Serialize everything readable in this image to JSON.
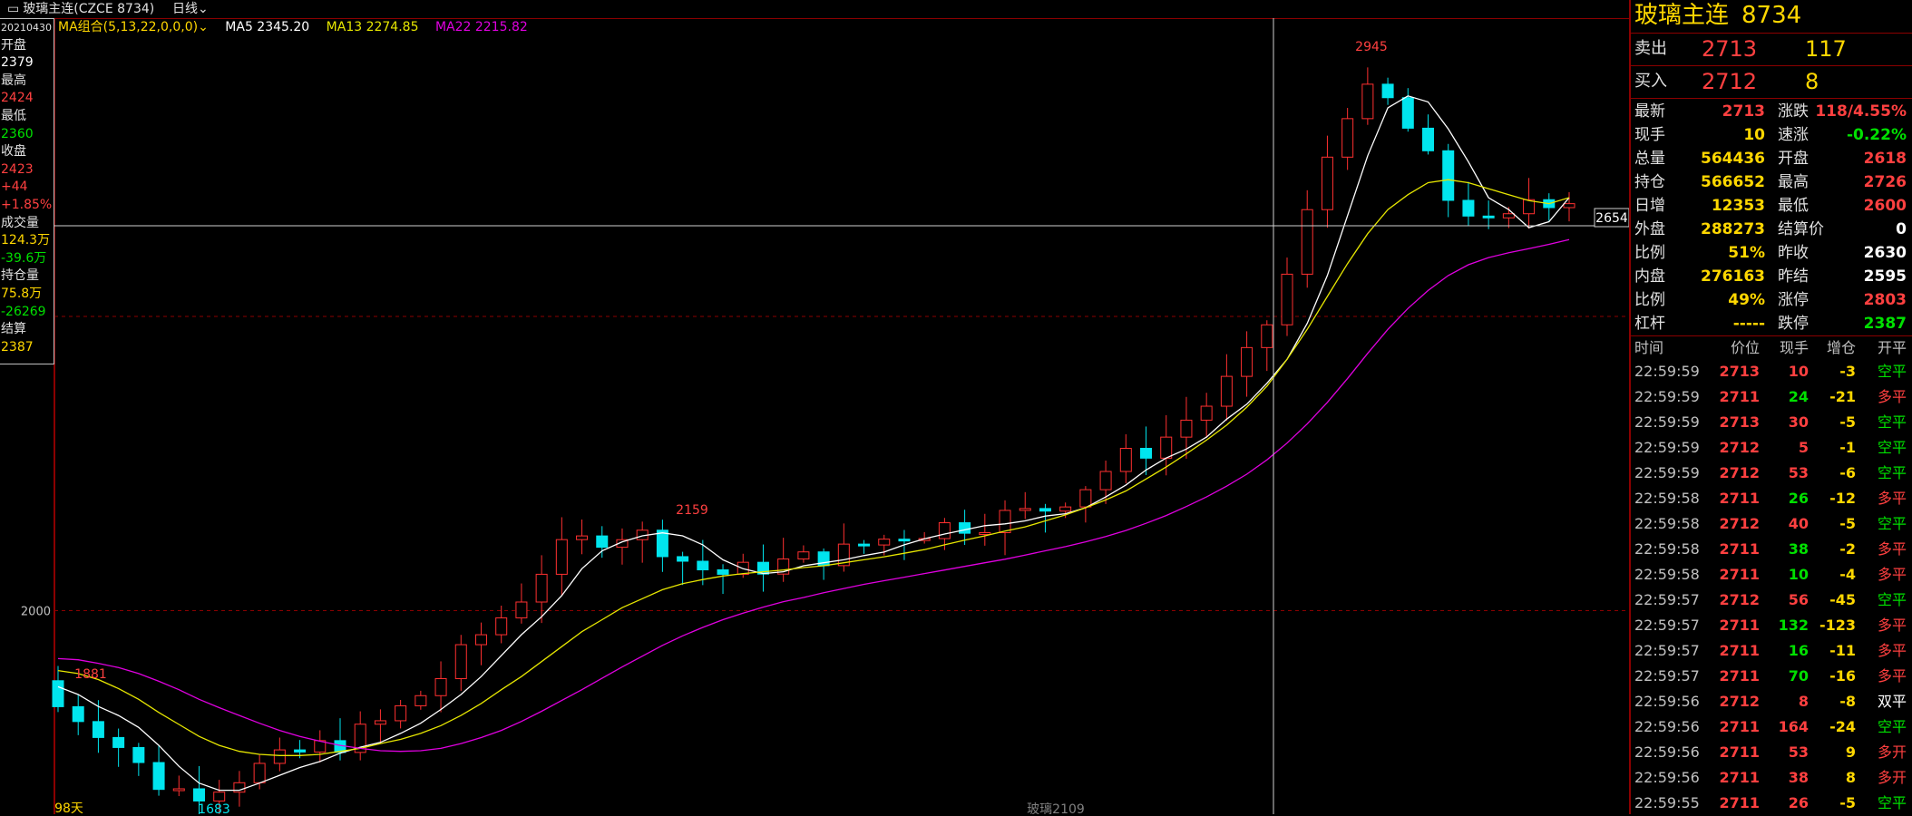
{
  "topbar": {
    "title": "玻璃主连(CZCE 8734)",
    "period": "日线",
    "period_icon": "chevron-down-icon"
  },
  "info": {
    "date": "20210430",
    "open_label": "开盘",
    "open": "2379",
    "high_label": "最高",
    "high": "2424",
    "low_label": "最低",
    "low": "2360",
    "close_label": "收盘",
    "close": "2423",
    "chg": "+44",
    "chg_pct": "+1.85%",
    "vol_label": "成交量",
    "vol": "124.3万",
    "vol_chg": "-39.6万",
    "oi_label": "持仓量",
    "oi": "75.8万",
    "oi_chg": "-26269",
    "settle_label": "结算",
    "settle": "2387"
  },
  "ma": {
    "group": "MA组合(5,13,22,0,0,0)",
    "ma5": "MA5 2345.20",
    "ma13": "MA13 2274.85",
    "ma22": "MA22 2215.82",
    "colors": {
      "ma5": "#ffffff",
      "ma13": "#e6e600",
      "ma22": "#e000e0"
    }
  },
  "chart_labels": {
    "price_2000": "2000",
    "crosshair_price": "2654",
    "peak": "2945",
    "peak2": "2159",
    "low1": "1881",
    "low2": "1683",
    "days": "98天",
    "contract": "玻璃2109"
  },
  "chart_data": {
    "type": "candlestick",
    "ylim": [
      1660,
      2990
    ],
    "series": [
      {
        "name": "MA5",
        "values": [
          1873,
          1860,
          1840,
          1825,
          1805,
          1775,
          1740,
          1712,
          1700,
          1700,
          1712,
          1725,
          1738,
          1748,
          1762,
          1772,
          1780,
          1795,
          1812,
          1835,
          1860,
          1890,
          1925,
          1960,
          1990,
          2025,
          2070,
          2100,
          2115,
          2125,
          2130,
          2125,
          2110,
          2085,
          2070,
          2062,
          2065,
          2075,
          2080,
          2085,
          2092,
          2098,
          2110,
          2120,
          2128,
          2135,
          2142,
          2145,
          2150,
          2158,
          2162,
          2172,
          2190,
          2210,
          2235,
          2255,
          2270,
          2290,
          2320,
          2345,
          2380,
          2420,
          2480,
          2560,
          2660,
          2760,
          2840,
          2860,
          2850,
          2805,
          2750,
          2690,
          2670,
          2640,
          2650,
          2690
        ]
      },
      {
        "name": "MA13",
        "values": [
          1900,
          1895,
          1885,
          1870,
          1852,
          1830,
          1810,
          1790,
          1775,
          1765,
          1760,
          1758,
          1758,
          1760,
          1765,
          1770,
          1778,
          1785,
          1795,
          1808,
          1825,
          1845,
          1868,
          1890,
          1915,
          1940,
          1965,
          1985,
          2005,
          2020,
          2035,
          2045,
          2052,
          2058,
          2062,
          2065,
          2068,
          2072,
          2075,
          2080,
          2085,
          2090,
          2096,
          2102,
          2110,
          2118,
          2125,
          2133,
          2140,
          2150,
          2160,
          2172,
          2185,
          2200,
          2220,
          2240,
          2262,
          2285,
          2310,
          2340,
          2375,
          2420,
          2470,
          2525,
          2580,
          2630,
          2670,
          2695,
          2715,
          2720,
          2715,
          2705,
          2695,
          2685,
          2680,
          2690
        ]
      },
      {
        "name": "MA22",
        "values": [
          1920,
          1918,
          1912,
          1905,
          1895,
          1882,
          1868,
          1852,
          1838,
          1825,
          1812,
          1800,
          1790,
          1782,
          1775,
          1770,
          1766,
          1765,
          1766,
          1770,
          1778,
          1788,
          1800,
          1815,
          1832,
          1850,
          1868,
          1887,
          1906,
          1924,
          1942,
          1958,
          1972,
          1985,
          1996,
          2006,
          2015,
          2022,
          2030,
          2037,
          2044,
          2050,
          2056,
          2062,
          2068,
          2074,
          2080,
          2086,
          2093,
          2100,
          2107,
          2115,
          2124,
          2134,
          2146,
          2159,
          2174,
          2190,
          2208,
          2228,
          2252,
          2280,
          2312,
          2348,
          2388,
          2430,
          2470,
          2505,
          2535,
          2560,
          2578,
          2590,
          2598,
          2605,
          2612,
          2620
        ]
      }
    ]
  },
  "panel": {
    "name": "玻璃主连",
    "code": "8734",
    "sell_label": "卖出",
    "sell_price": "2713",
    "sell_vol": "117",
    "buy_label": "买入",
    "buy_price": "2712",
    "buy_vol": "8",
    "quotes": [
      {
        "k1": "最新",
        "v1": "2713",
        "c1": "red",
        "k2": "涨跌",
        "v2": "118/4.55%",
        "c2": "red"
      },
      {
        "k1": "现手",
        "v1": "10",
        "c1": "yellow",
        "k2": "速涨",
        "v2": "-0.22%",
        "c2": "green"
      },
      {
        "k1": "总量",
        "v1": "564436",
        "c1": "yellow",
        "k2": "开盘",
        "v2": "2618",
        "c2": "red"
      },
      {
        "k1": "持仓",
        "v1": "566652",
        "c1": "yellow",
        "k2": "最高",
        "v2": "2726",
        "c2": "red"
      },
      {
        "k1": "日增",
        "v1": "12353",
        "c1": "yellow",
        "k2": "最低",
        "v2": "2600",
        "c2": "red"
      },
      {
        "k1": "外盘",
        "v1": "288273",
        "c1": "yellow",
        "k2": "结算价",
        "v2": "0",
        "c2": "white"
      },
      {
        "k1": "比例",
        "v1": "51%",
        "c1": "yellow",
        "k2": "昨收",
        "v2": "2630",
        "c2": "white"
      },
      {
        "k1": "内盘",
        "v1": "276163",
        "c1": "yellow",
        "k2": "昨结",
        "v2": "2595",
        "c2": "white"
      },
      {
        "k1": "比例",
        "v1": "49%",
        "c1": "yellow",
        "k2": "涨停",
        "v2": "2803",
        "c2": "red"
      },
      {
        "k1": "杠杆",
        "v1": "-----",
        "c1": "yellow",
        "k2": "跌停",
        "v2": "2387",
        "c2": "green"
      }
    ],
    "ticks_header": {
      "time": "时间",
      "price": "价位",
      "qty": "现手",
      "chg": "增仓",
      "type": "开平"
    },
    "ticks": [
      {
        "t": "22:59:59",
        "p": "2713",
        "q": "10",
        "qc": "red",
        "c": "-3",
        "cc": "yellow",
        "d": "空平",
        "dc": "green"
      },
      {
        "t": "22:59:59",
        "p": "2711",
        "q": "24",
        "qc": "green",
        "c": "-21",
        "cc": "yellow",
        "d": "多平",
        "dc": "red"
      },
      {
        "t": "22:59:59",
        "p": "2713",
        "q": "30",
        "qc": "red",
        "c": "-5",
        "cc": "yellow",
        "d": "空平",
        "dc": "green"
      },
      {
        "t": "22:59:59",
        "p": "2712",
        "q": "5",
        "qc": "red",
        "c": "-1",
        "cc": "yellow",
        "d": "空平",
        "dc": "green"
      },
      {
        "t": "22:59:59",
        "p": "2712",
        "q": "53",
        "qc": "red",
        "c": "-6",
        "cc": "yellow",
        "d": "空平",
        "dc": "green"
      },
      {
        "t": "22:59:58",
        "p": "2711",
        "q": "26",
        "qc": "green",
        "c": "-12",
        "cc": "yellow",
        "d": "多平",
        "dc": "red"
      },
      {
        "t": "22:59:58",
        "p": "2712",
        "q": "40",
        "qc": "red",
        "c": "-5",
        "cc": "yellow",
        "d": "空平",
        "dc": "green"
      },
      {
        "t": "22:59:58",
        "p": "2711",
        "q": "38",
        "qc": "green",
        "c": "-2",
        "cc": "yellow",
        "d": "多平",
        "dc": "red"
      },
      {
        "t": "22:59:58",
        "p": "2711",
        "q": "10",
        "qc": "green",
        "c": "-4",
        "cc": "yellow",
        "d": "多平",
        "dc": "red"
      },
      {
        "t": "22:59:57",
        "p": "2712",
        "q": "56",
        "qc": "red",
        "c": "-45",
        "cc": "yellow",
        "d": "空平",
        "dc": "green"
      },
      {
        "t": "22:59:57",
        "p": "2711",
        "q": "132",
        "qc": "green",
        "c": "-123",
        "cc": "yellow",
        "d": "多平",
        "dc": "red"
      },
      {
        "t": "22:59:57",
        "p": "2711",
        "q": "16",
        "qc": "green",
        "c": "-11",
        "cc": "yellow",
        "d": "多平",
        "dc": "red"
      },
      {
        "t": "22:59:57",
        "p": "2711",
        "q": "70",
        "qc": "green",
        "c": "-16",
        "cc": "yellow",
        "d": "多平",
        "dc": "red"
      },
      {
        "t": "22:59:56",
        "p": "2712",
        "q": "8",
        "qc": "red",
        "c": "-8",
        "cc": "yellow",
        "d": "双平",
        "dc": "white"
      },
      {
        "t": "22:59:56",
        "p": "2711",
        "q": "164",
        "qc": "red",
        "c": "-24",
        "cc": "yellow",
        "d": "空平",
        "dc": "green"
      },
      {
        "t": "22:59:56",
        "p": "2711",
        "q": "53",
        "qc": "red",
        "c": "9",
        "cc": "yellow",
        "d": "多开",
        "dc": "red"
      },
      {
        "t": "22:59:56",
        "p": "2711",
        "q": "38",
        "qc": "red",
        "c": "8",
        "cc": "yellow",
        "d": "多开",
        "dc": "red"
      },
      {
        "t": "22:59:55",
        "p": "2711",
        "q": "26",
        "qc": "red",
        "c": "-5",
        "cc": "yellow",
        "d": "空平",
        "dc": "green"
      }
    ]
  }
}
